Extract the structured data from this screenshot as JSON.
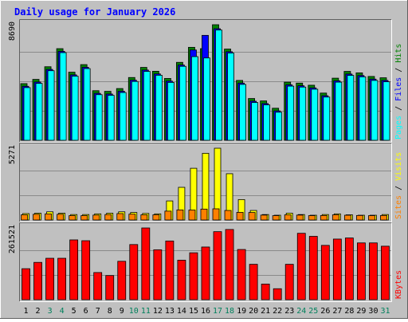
{
  "colors": {
    "background": "#c0c0c0",
    "title": "#0000ff",
    "pages": "#00ffff",
    "files": "#0000ff",
    "hits": "#008000",
    "sites": "#ff8000",
    "visits": "#ffff00",
    "kbytes": "#ff0000",
    "weekend_day": "#00805c",
    "weekday": "#000000"
  },
  "chart_data": {
    "title": "Daily usage for January 2026",
    "type": "bar",
    "days": [
      "1",
      "2",
      "3",
      "4",
      "5",
      "6",
      "7",
      "8",
      "9",
      "10",
      "11",
      "12",
      "13",
      "14",
      "15",
      "16",
      "17",
      "18",
      "19",
      "20",
      "21",
      "22",
      "23",
      "24",
      "25",
      "26",
      "27",
      "28",
      "29",
      "30",
      "31"
    ],
    "weekend_days": [
      "3",
      "4",
      "10",
      "11",
      "17",
      "18",
      "24",
      "25",
      "31"
    ],
    "panels": [
      {
        "id": "hits",
        "ymax_label": "8690",
        "ymax": 8690,
        "right_labels": [
          "Pages",
          "Files",
          "Hits"
        ],
        "series": [
          {
            "name": "Hits",
            "values": [
              4260,
              4580,
              5530,
              6890,
              5120,
              5690,
              3730,
              3680,
              3890,
              4720,
              5480,
              5190,
              4650,
              5860,
              6990,
              6890,
              8690,
              6860,
              4500,
              3140,
              2960,
              2410,
              4370,
              4300,
              4140,
              3550,
              4670,
              5180,
              5070,
              4800,
              4700
            ]
          },
          {
            "name": "Files",
            "values": [
              4060,
              4380,
              5330,
              6690,
              4920,
              5490,
              3530,
              3480,
              3690,
              4520,
              5280,
              4990,
              4450,
              5660,
              6790,
              7890,
              8390,
              6660,
              4300,
              2940,
              2760,
              2210,
              4170,
              4100,
              3940,
              3350,
              4470,
              4980,
              4870,
              4600,
              4500
            ]
          },
          {
            "name": "Pages",
            "values": [
              3960,
              4280,
              5230,
              6590,
              4820,
              5390,
              3430,
              3380,
              3590,
              4420,
              5180,
              4890,
              4350,
              5560,
              6290,
              6190,
              8290,
              6560,
              4200,
              2840,
              2660,
              2110,
              4070,
              4000,
              3840,
              3250,
              4370,
              4880,
              4770,
              4500,
              4400
            ]
          }
        ]
      },
      {
        "id": "visits",
        "ymax_label": "5271",
        "ymax": 5271,
        "right_labels": [
          "Sites",
          "Visits"
        ],
        "series": [
          {
            "name": "Visits",
            "values": [
              470,
              500,
              600,
              500,
              400,
              400,
              450,
              500,
              600,
              550,
              480,
              450,
              1400,
              2400,
              3800,
              4900,
              5271,
              3400,
              1500,
              700,
              400,
              350,
              500,
              400,
              350,
              400,
              450,
              380,
              350,
              350,
              400
            ]
          },
          {
            "name": "Sites",
            "values": [
              380,
              420,
              450,
              420,
              320,
              320,
              360,
              400,
              470,
              430,
              380,
              380,
              650,
              740,
              730,
              800,
              820,
              700,
              560,
              550,
              360,
              320,
              380,
              360,
              320,
              330,
              380,
              350,
              330,
              320,
              330
            ]
          }
        ]
      },
      {
        "id": "kbytes",
        "ymax_label": "261521",
        "ymax": 261521,
        "right_labels": [
          "KBytes"
        ],
        "series": [
          {
            "name": "KBytes",
            "values": [
              113000,
              136000,
              151000,
              151000,
              218000,
              215000,
              99000,
              88000,
              140000,
              201000,
              261521,
              182000,
              214000,
              144000,
              171000,
              192000,
              248000,
              256000,
              183000,
              129000,
              57000,
              40000,
              129000,
              242000,
              231000,
              198000,
              221000,
              225000,
              207000,
              207000,
              195000
            ]
          }
        ]
      }
    ]
  }
}
